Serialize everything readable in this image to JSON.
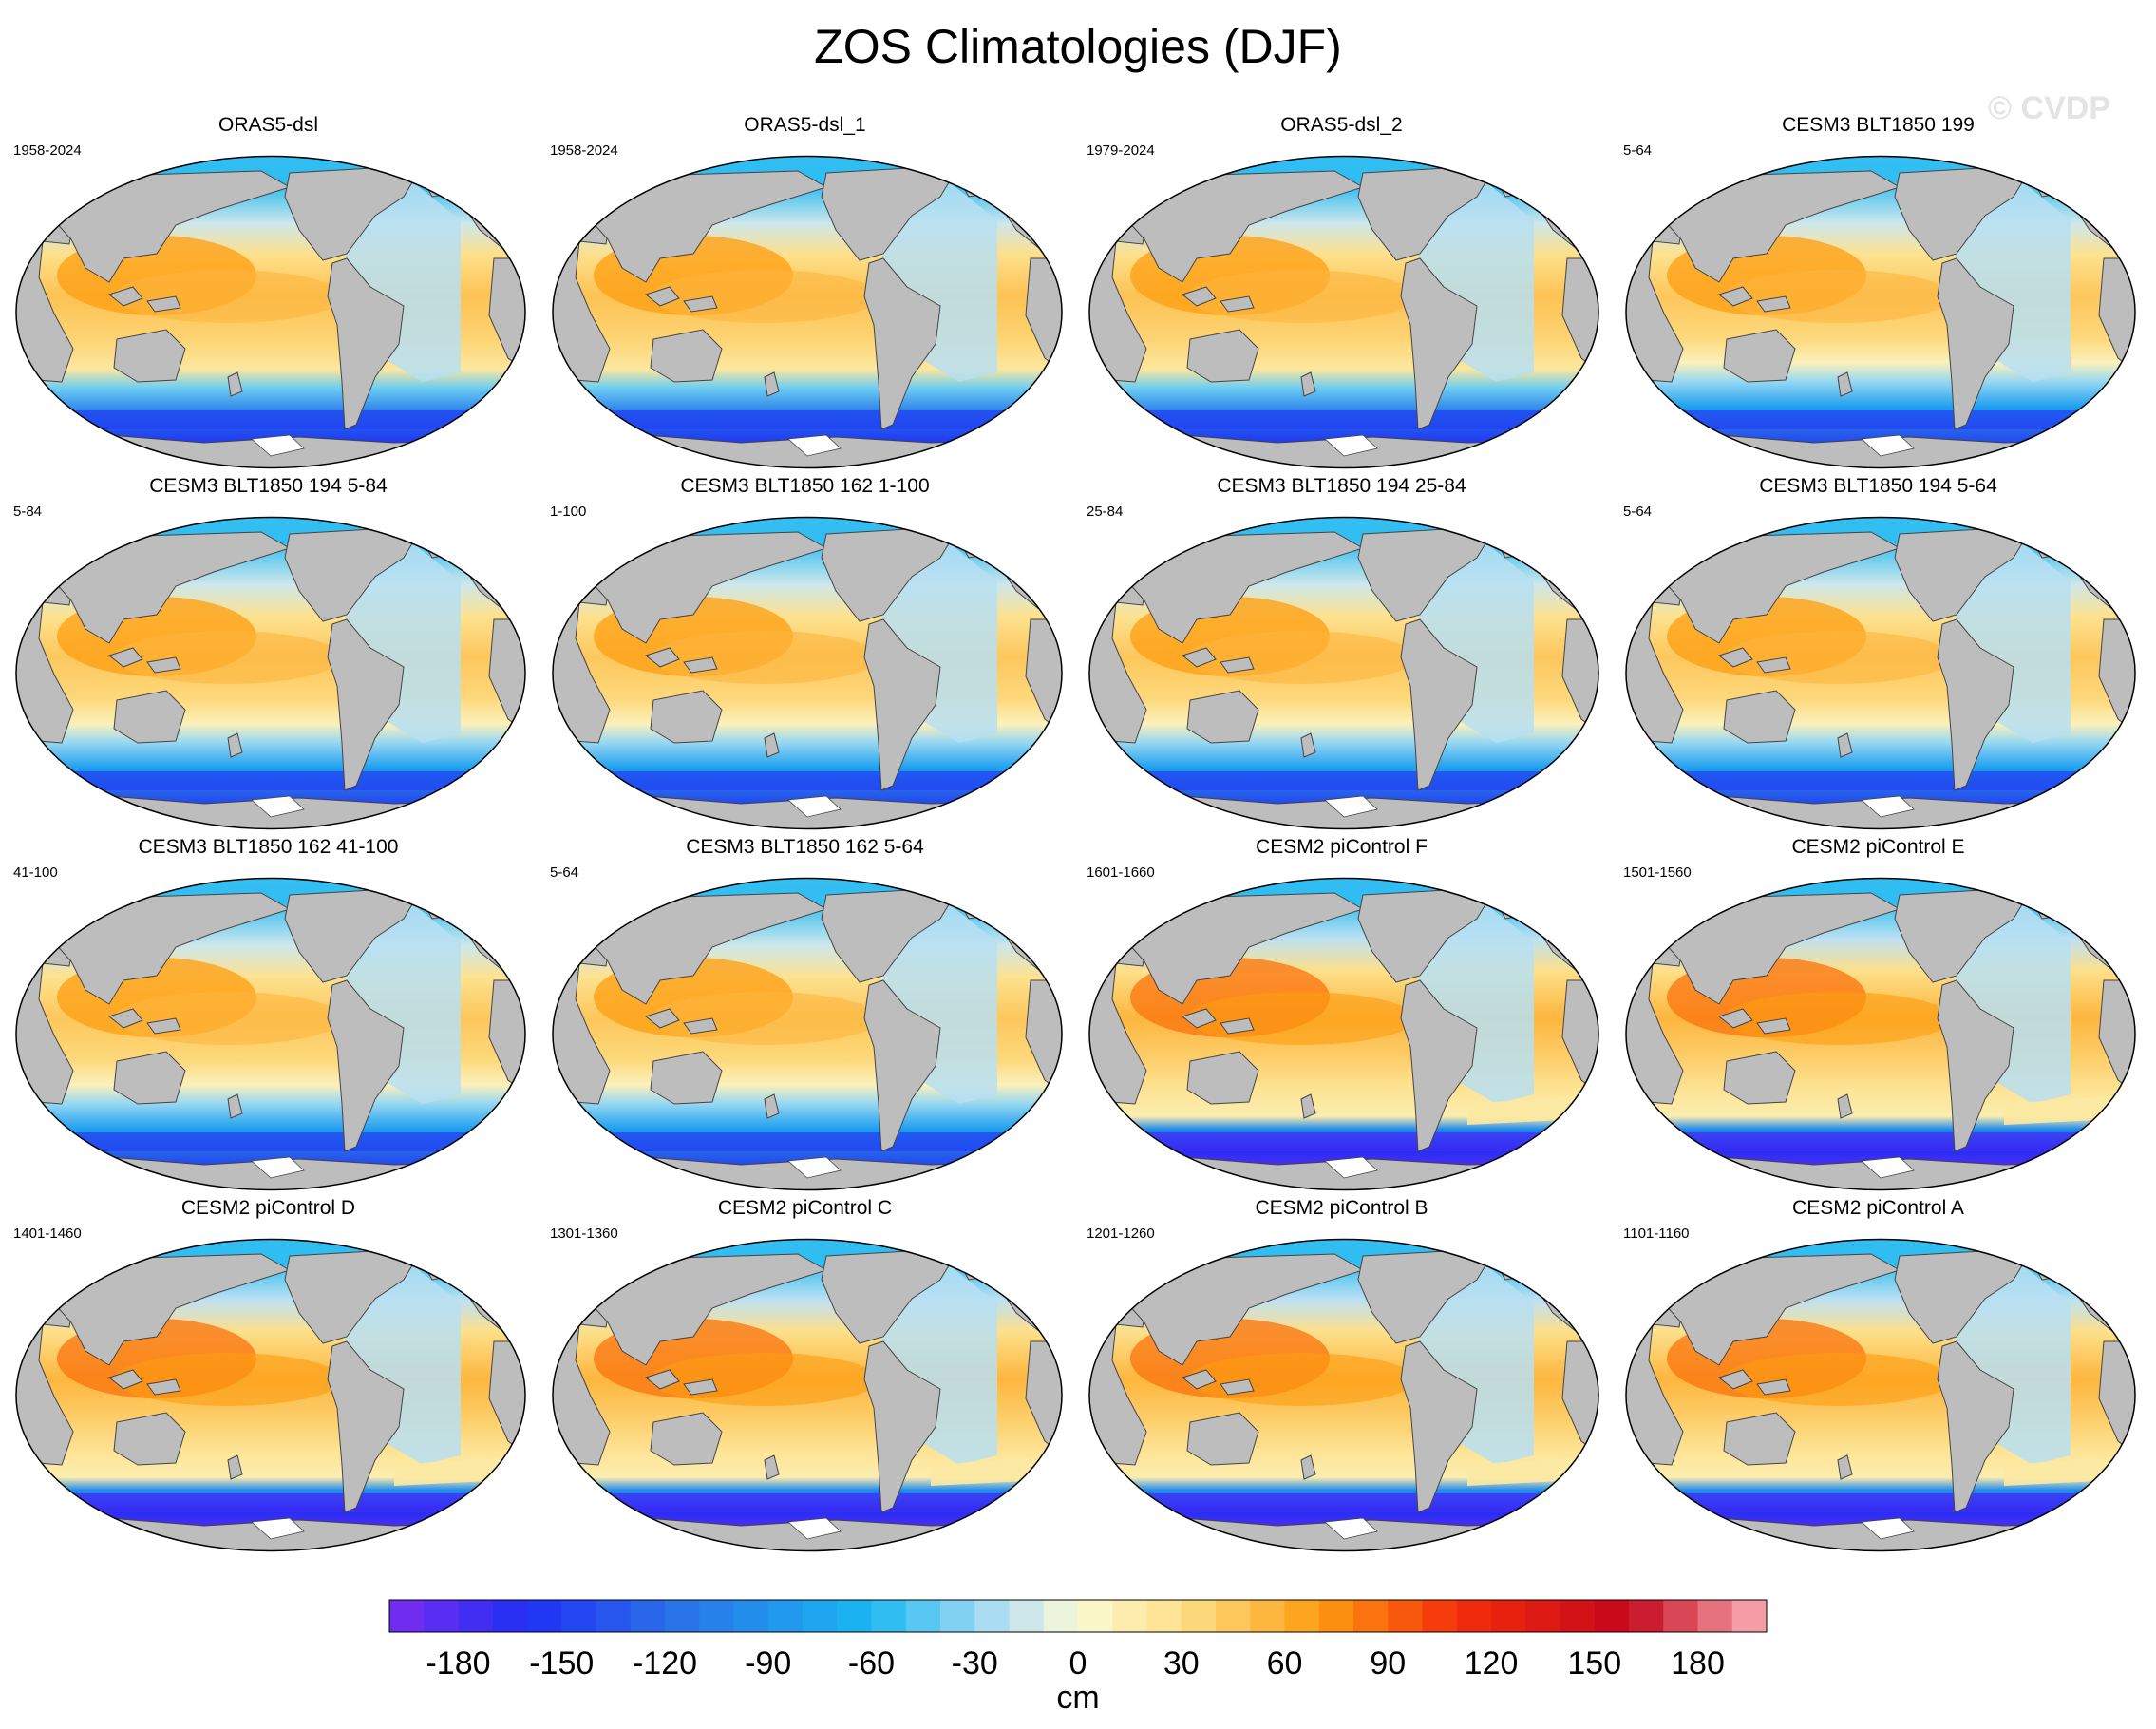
{
  "title": "ZOS Climatologies (DJF)",
  "watermark": "© CVDP",
  "colors": {
    "land": "#bdbdbd",
    "coast": "#444444",
    "ice": "#ffffff"
  },
  "panels": [
    {
      "title": "ORAS5-dsl",
      "years": "1958-2024",
      "variant": "obs"
    },
    {
      "title": "ORAS5-dsl_1",
      "years": "1958-2024",
      "variant": "obs"
    },
    {
      "title": "ORAS5-dsl_2",
      "years": "1979-2024",
      "variant": "obs"
    },
    {
      "title": "CESM3 BLT1850 199",
      "years": "5-64",
      "variant": "cesm3"
    },
    {
      "title": "CESM3 BLT1850 194 5-84",
      "years": "5-84",
      "variant": "cesm3"
    },
    {
      "title": "CESM3 BLT1850 162 1-100",
      "years": "1-100",
      "variant": "cesm3"
    },
    {
      "title": "CESM3 BLT1850 194 25-84",
      "years": "25-84",
      "variant": "cesm3"
    },
    {
      "title": "CESM3 BLT1850 194 5-64",
      "years": "5-64",
      "variant": "cesm3"
    },
    {
      "title": "CESM3 BLT1850 162 41-100",
      "years": "41-100",
      "variant": "cesm3"
    },
    {
      "title": "CESM3 BLT1850 162 5-64",
      "years": "5-64",
      "variant": "cesm3"
    },
    {
      "title": "CESM2 piControl F",
      "years": "1601-1660",
      "variant": "cesm2"
    },
    {
      "title": "CESM2 piControl E",
      "years": "1501-1560",
      "variant": "cesm2"
    },
    {
      "title": "CESM2 piControl D",
      "years": "1401-1460",
      "variant": "cesm2"
    },
    {
      "title": "CESM2 piControl C",
      "years": "1301-1360",
      "variant": "cesm2"
    },
    {
      "title": "CESM2 piControl B",
      "years": "1201-1260",
      "variant": "cesm2"
    },
    {
      "title": "CESM2 piControl A",
      "years": "1101-1160",
      "variant": "cesm2"
    }
  ],
  "colorbar": {
    "unit": "cm",
    "range": [
      -200,
      200
    ],
    "step": 10,
    "tick_labels": [
      "-180",
      "-150",
      "-120",
      "-90",
      "-60",
      "-30",
      "0",
      "30",
      "60",
      "90",
      "120",
      "150",
      "180"
    ],
    "tick_values": [
      -180,
      -150,
      -120,
      -90,
      -60,
      -30,
      0,
      30,
      60,
      90,
      120,
      150,
      180
    ],
    "stops": [
      {
        "v": -200,
        "c": "#7d2bf0"
      },
      {
        "v": -160,
        "c": "#1e2ff5"
      },
      {
        "v": -120,
        "c": "#2a6ee8"
      },
      {
        "v": -60,
        "c": "#1ab8f2"
      },
      {
        "v": -20,
        "c": "#bfe1f2"
      },
      {
        "v": 0,
        "c": "#fbfad4"
      },
      {
        "v": 30,
        "c": "#fde08a"
      },
      {
        "v": 70,
        "c": "#fd9d10"
      },
      {
        "v": 110,
        "c": "#f52e0a"
      },
      {
        "v": 160,
        "c": "#c4061c"
      },
      {
        "v": 200,
        "c": "#fbb3b8"
      }
    ]
  }
}
